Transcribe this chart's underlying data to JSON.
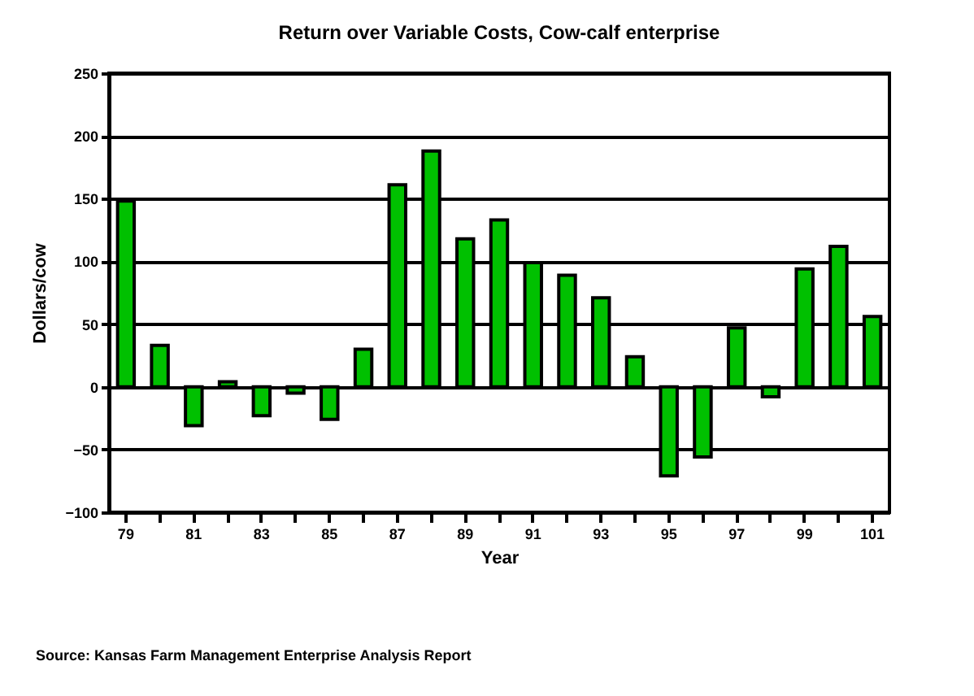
{
  "chart_data": {
    "type": "bar",
    "title": "Return over Variable Costs, Cow-calf enterprise",
    "xlabel": "Year",
    "ylabel": "Dollars/cow",
    "categories": [
      "79",
      null,
      "81",
      null,
      "83",
      null,
      "85",
      null,
      "87",
      null,
      "89",
      null,
      "91",
      null,
      "93",
      null,
      "95",
      null,
      "97",
      null,
      "99",
      null,
      "101"
    ],
    "values": [
      148,
      33,
      -31,
      4,
      -23,
      -5,
      -26,
      30,
      161,
      188,
      118,
      133,
      99,
      89,
      71,
      24,
      -71,
      -56,
      47,
      -8,
      94,
      112,
      56
    ],
    "color": "#00c000",
    "ylim": [
      -100,
      250
    ],
    "yticks": [
      -100,
      -50,
      0,
      50,
      100,
      150,
      200,
      250
    ],
    "grid": "y",
    "annotations": [
      "Source: Kansas Farm Management Enterprise Analysis Report"
    ]
  }
}
